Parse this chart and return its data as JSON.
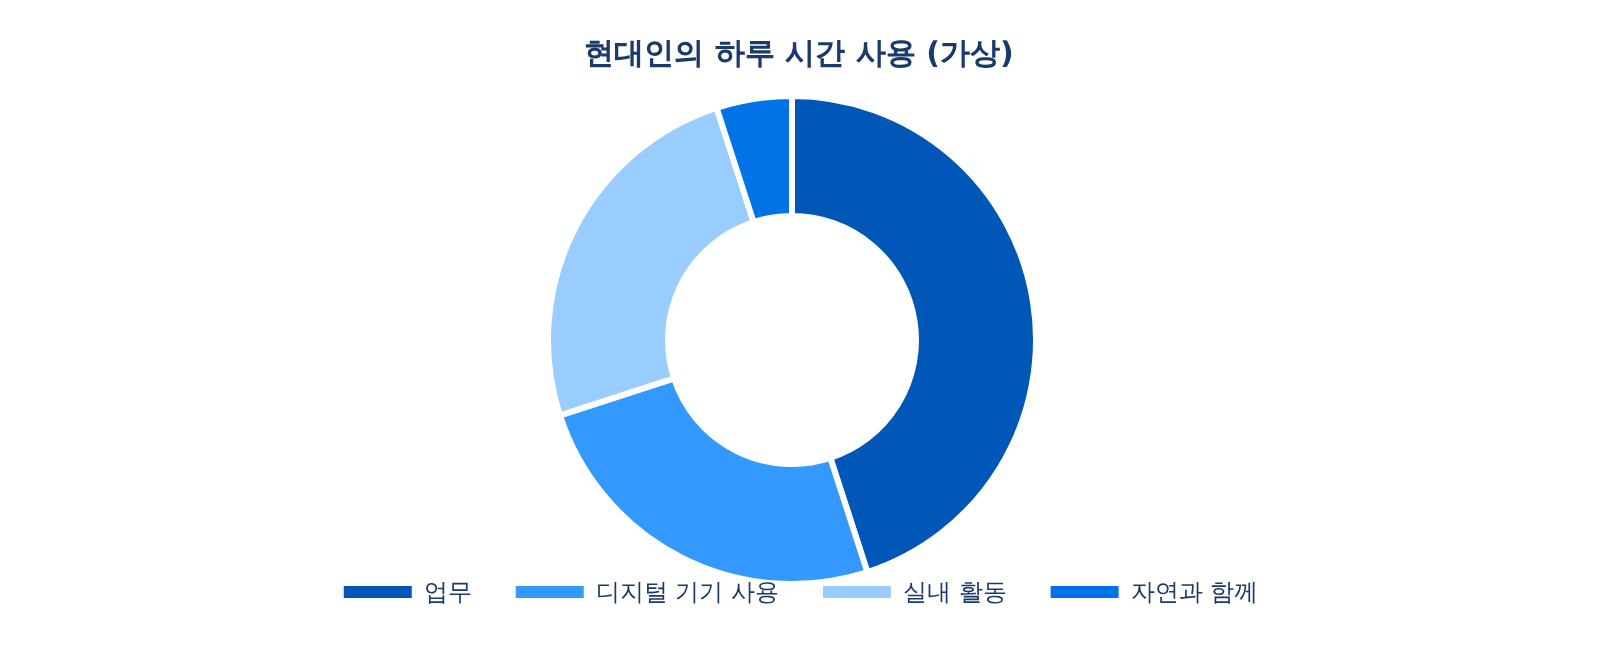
{
  "chart_data": {
    "type": "donut",
    "title": "현대인의 하루 시간 사용 (가상)",
    "categories": [
      "업무",
      "디지털 기기 사용",
      "실내 활동",
      "자연과 함께"
    ],
    "values": [
      45,
      25,
      25,
      5
    ],
    "colors": [
      "#0057b8",
      "#3399ff",
      "#99ccff",
      "#0073e6"
    ],
    "legend": "bottom"
  }
}
